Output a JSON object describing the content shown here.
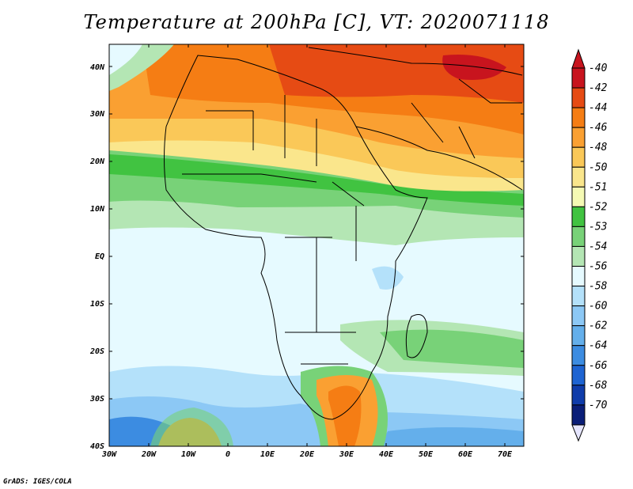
{
  "title": "Temperature at 200hPa [C], VT: 2020071118",
  "footer": "GrADS: IGES/COLA",
  "lat_labels": [
    "40N",
    "30N",
    "20N",
    "10N",
    "EQ",
    "10S",
    "20S",
    "30S",
    "40S"
  ],
  "lon_labels": [
    "30W",
    "20W",
    "10W",
    "0",
    "10E",
    "20E",
    "30E",
    "40E",
    "50E",
    "60E",
    "70E"
  ],
  "colorbar": {
    "labels": [
      "-40",
      "-42",
      "-44",
      "-46",
      "-48",
      "-50",
      "-51",
      "-52",
      "-53",
      "-54",
      "-56",
      "-58",
      "-60",
      "-62",
      "-64",
      "-66",
      "-68",
      "-70"
    ],
    "colors": [
      "#c8141e",
      "#e64b14",
      "#f57d14",
      "#faa032",
      "#fac858",
      "#fae68c",
      "#f5fab4",
      "#41c341",
      "#78d278",
      "#b4e6b4",
      "#e6faff",
      "#b4e1fa",
      "#8cc8f5",
      "#64afeb",
      "#3c8ce1",
      "#1e64d2",
      "#0f3caa",
      "#0a1e78"
    ],
    "top_color": "#c8141e",
    "bottom_color": "#e6e6ff"
  }
}
